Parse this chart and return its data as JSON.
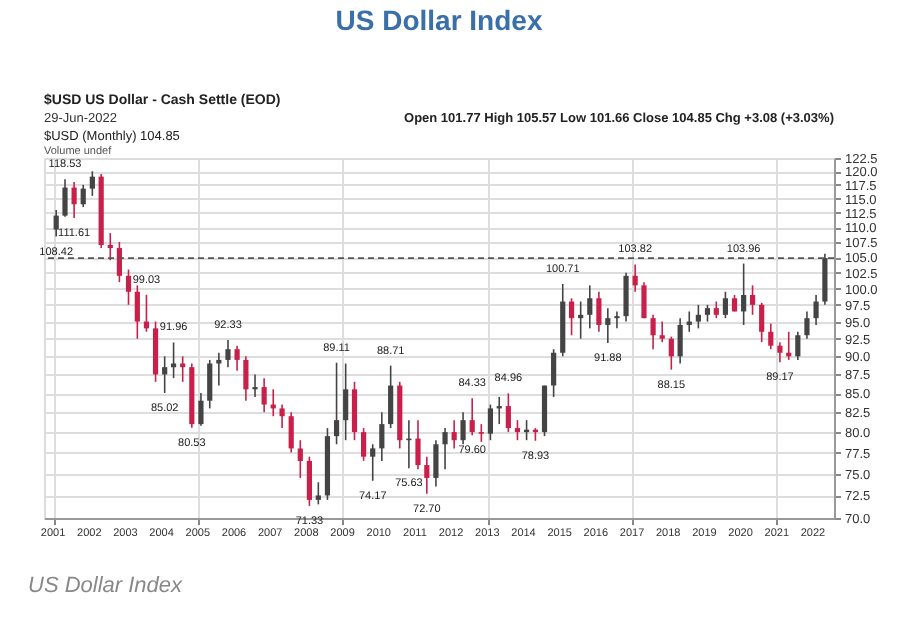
{
  "chart_data": {
    "type": "candlestick",
    "title": "US Dollar Index",
    "subtitle": "$USD US Dollar - Cash Settle (EOD)",
    "annotations": [
      "29-Jun-2022",
      "Open 101.77 High 105.57 Low 101.66 Close 104.85 Chg +3.08 (+3.03%)",
      "$USD (Monthly) 104.85",
      "Volume undef",
      "US Dollar Index",
      {
        "text": "108.42",
        "x": "2001-02",
        "y": 108.42
      },
      {
        "text": "118.53",
        "x": "2001-05",
        "y": 118.53
      },
      {
        "text": "111.61",
        "x": "2001-08",
        "y": 111.61
      },
      {
        "text": "99.03",
        "x": "2003-08",
        "y": 99.03
      },
      {
        "text": "85.02",
        "x": "2004-02",
        "y": 85.02
      },
      {
        "text": "91.96",
        "x": "2004-05",
        "y": 91.96
      },
      {
        "text": "80.53",
        "x": "2004-11",
        "y": 80.53
      },
      {
        "text": "92.33",
        "x": "2005-11",
        "y": 92.33
      },
      {
        "text": "71.33",
        "x": "2008-02",
        "y": 71.33
      },
      {
        "text": "89.11",
        "x": "2008-11",
        "y": 89.11
      },
      {
        "text": "74.17",
        "x": "2009-11",
        "y": 74.17
      },
      {
        "text": "88.71",
        "x": "2010-05",
        "y": 88.71
      },
      {
        "text": "75.63",
        "x": "2010-11",
        "y": 75.63
      },
      {
        "text": "72.70",
        "x": "2011-05",
        "y": 72.7
      },
      {
        "text": "84.33",
        "x": "2012-08",
        "y": 84.33
      },
      {
        "text": "79.60",
        "x": "2012-08",
        "y": 79.6
      },
      {
        "text": "84.96",
        "x": "2013-08",
        "y": 84.96
      },
      {
        "text": "78.93",
        "x": "2014-05",
        "y": 78.93
      },
      {
        "text": "100.71",
        "x": "2015-02",
        "y": 100.71
      },
      {
        "text": "91.88",
        "x": "2016-05",
        "y": 91.88
      },
      {
        "text": "103.82",
        "x": "2017-02",
        "y": 103.82
      },
      {
        "text": "88.15",
        "x": "2018-02",
        "y": 88.15
      },
      {
        "text": "103.96",
        "x": "2020-02",
        "y": 103.96
      },
      {
        "text": "89.17",
        "x": "2021-02",
        "y": 89.17
      }
    ],
    "x": [
      "2001-02",
      "2001-05",
      "2001-08",
      "2001-11",
      "2002-02",
      "2002-05",
      "2002-08",
      "2002-11",
      "2003-02",
      "2003-05",
      "2003-08",
      "2003-11",
      "2004-02",
      "2004-05",
      "2004-08",
      "2004-11",
      "2005-02",
      "2005-05",
      "2005-08",
      "2005-11",
      "2006-02",
      "2006-05",
      "2006-08",
      "2006-11",
      "2007-02",
      "2007-05",
      "2007-08",
      "2007-11",
      "2008-02",
      "2008-05",
      "2008-08",
      "2008-11",
      "2009-02",
      "2009-05",
      "2009-08",
      "2009-11",
      "2010-02",
      "2010-05",
      "2010-08",
      "2010-11",
      "2011-02",
      "2011-05",
      "2011-08",
      "2011-11",
      "2012-02",
      "2012-05",
      "2012-08",
      "2012-11",
      "2013-02",
      "2013-05",
      "2013-08",
      "2013-11",
      "2014-02",
      "2014-05",
      "2014-08",
      "2014-11",
      "2015-02",
      "2015-05",
      "2015-08",
      "2015-11",
      "2016-02",
      "2016-05",
      "2016-08",
      "2016-11",
      "2017-02",
      "2017-05",
      "2017-08",
      "2017-11",
      "2018-02",
      "2018-05",
      "2018-08",
      "2018-11",
      "2019-02",
      "2019-05",
      "2019-08",
      "2019-11",
      "2020-02",
      "2020-05",
      "2020-08",
      "2020-11",
      "2021-02",
      "2021-05",
      "2021-08",
      "2021-11",
      "2022-02",
      "2022-05"
    ],
    "ohlc": [
      [
        109.6,
        113.0,
        108.42,
        112.0
      ],
      [
        112.0,
        118.53,
        111.8,
        117.0
      ],
      [
        117.0,
        118.0,
        111.61,
        114.0
      ],
      [
        114.0,
        117.5,
        113.5,
        116.8
      ],
      [
        116.8,
        120.0,
        115.5,
        119.0
      ],
      [
        119.0,
        119.5,
        106.5,
        107.0
      ],
      [
        107.0,
        109.0,
        104.5,
        106.5
      ],
      [
        106.5,
        107.5,
        101.0,
        102.0
      ],
      [
        102.0,
        103.0,
        97.5,
        99.5
      ],
      [
        99.5,
        100.5,
        92.5,
        95.0
      ],
      [
        95.0,
        99.03,
        93.5,
        94.0
      ],
      [
        94.0,
        95.0,
        86.5,
        87.5
      ],
      [
        87.5,
        90.0,
        85.02,
        88.5
      ],
      [
        88.5,
        91.96,
        87.0,
        89.0
      ],
      [
        89.0,
        90.0,
        86.5,
        88.5
      ],
      [
        88.5,
        89.0,
        80.53,
        81.0
      ],
      [
        81.0,
        85.0,
        80.8,
        84.0
      ],
      [
        84.0,
        89.5,
        83.0,
        89.0
      ],
      [
        89.0,
        90.5,
        86.0,
        89.5
      ],
      [
        89.5,
        92.33,
        88.5,
        91.0
      ],
      [
        91.0,
        91.5,
        88.0,
        89.5
      ],
      [
        89.5,
        90.0,
        84.0,
        85.5
      ],
      [
        85.5,
        87.5,
        84.5,
        85.8
      ],
      [
        85.8,
        87.0,
        82.5,
        83.5
      ],
      [
        83.5,
        85.5,
        82.0,
        83.0
      ],
      [
        83.0,
        83.5,
        80.5,
        82.0
      ],
      [
        82.0,
        82.5,
        77.5,
        78.0
      ],
      [
        78.0,
        79.0,
        74.5,
        76.5
      ],
      [
        76.5,
        77.0,
        71.33,
        72.0
      ],
      [
        72.0,
        74.0,
        71.5,
        72.5
      ],
      [
        72.5,
        80.5,
        72.0,
        79.5
      ],
      [
        79.5,
        89.11,
        78.5,
        81.5
      ],
      [
        81.5,
        89.0,
        79.0,
        85.5
      ],
      [
        85.5,
        86.5,
        79.0,
        80.0
      ],
      [
        80.0,
        80.5,
        76.5,
        77.0
      ],
      [
        77.0,
        78.5,
        74.17,
        78.0
      ],
      [
        78.0,
        82.5,
        76.5,
        81.0
      ],
      [
        81.0,
        88.71,
        80.5,
        86.0
      ],
      [
        86.0,
        86.5,
        78.0,
        79.0
      ],
      [
        79.0,
        81.5,
        75.63,
        79.2
      ],
      [
        79.2,
        81.5,
        75.5,
        76.0
      ],
      [
        76.0,
        77.0,
        72.7,
        74.5
      ],
      [
        74.5,
        79.0,
        73.5,
        78.5
      ],
      [
        78.5,
        80.5,
        75.5,
        80.0
      ],
      [
        80.0,
        81.5,
        78.0,
        79.0
      ],
      [
        79.0,
        82.5,
        78.5,
        81.5
      ],
      [
        81.5,
        84.33,
        79.6,
        80.0
      ],
      [
        80.0,
        81.0,
        78.8,
        79.8
      ],
      [
        79.8,
        83.5,
        79.0,
        83.0
      ],
      [
        83.0,
        84.5,
        81.0,
        83.3
      ],
      [
        83.3,
        84.96,
        80.0,
        80.5
      ],
      [
        80.5,
        81.5,
        79.0,
        80.0
      ],
      [
        80.0,
        81.5,
        79.0,
        80.3
      ],
      [
        80.3,
        80.5,
        78.93,
        80.0
      ],
      [
        80.0,
        86.0,
        79.5,
        86.0
      ],
      [
        86.0,
        91.0,
        84.5,
        90.5
      ],
      [
        90.5,
        100.71,
        90.0,
        98.0
      ],
      [
        98.0,
        98.5,
        93.0,
        95.5
      ],
      [
        95.5,
        98.0,
        92.5,
        96.0
      ],
      [
        96.0,
        100.5,
        94.0,
        98.5
      ],
      [
        98.5,
        99.5,
        93.5,
        94.5
      ],
      [
        94.5,
        97.0,
        91.88,
        95.5
      ],
      [
        95.5,
        96.5,
        94.0,
        95.8
      ],
      [
        95.8,
        102.5,
        95.0,
        102.0
      ],
      [
        102.0,
        103.82,
        99.5,
        100.5
      ],
      [
        100.5,
        101.0,
        95.5,
        95.5
      ],
      [
        95.5,
        96.0,
        91.0,
        93.0
      ],
      [
        93.0,
        95.0,
        92.0,
        92.5
      ],
      [
        92.5,
        92.8,
        88.15,
        90.0
      ],
      [
        90.0,
        95.5,
        89.0,
        94.5
      ],
      [
        94.5,
        96.5,
        93.5,
        95.0
      ],
      [
        95.0,
        97.5,
        94.0,
        96.0
      ],
      [
        96.0,
        97.5,
        95.0,
        97.0
      ],
      [
        97.0,
        98.0,
        95.5,
        96.0
      ],
      [
        96.0,
        99.5,
        95.5,
        98.5
      ],
      [
        98.5,
        99.0,
        96.5,
        96.5
      ],
      [
        96.5,
        103.96,
        94.5,
        99.0
      ],
      [
        99.0,
        100.5,
        96.0,
        97.5
      ],
      [
        97.5,
        97.8,
        92.0,
        93.5
      ],
      [
        93.5,
        94.7,
        91.0,
        91.5
      ],
      [
        91.5,
        92.0,
        89.17,
        90.5
      ],
      [
        90.5,
        93.5,
        89.5,
        90.0
      ],
      [
        90.0,
        93.5,
        89.5,
        93.0
      ],
      [
        93.0,
        96.5,
        92.5,
        95.5
      ],
      [
        95.5,
        99.0,
        94.5,
        98.0
      ],
      [
        98.0,
        105.57,
        97.5,
        104.85
      ]
    ],
    "colors": [
      "#444444",
      "#444444",
      "#c8204a",
      "#444444",
      "#444444",
      "#c8204a",
      "#c8204a",
      "#c8204a",
      "#c8204a",
      "#c8204a",
      "#c8204a",
      "#c8204a",
      "#444444",
      "#444444",
      "#c8204a",
      "#c8204a",
      "#444444",
      "#444444",
      "#444444",
      "#444444",
      "#c8204a",
      "#c8204a",
      "#444444",
      "#c8204a",
      "#c8204a",
      "#c8204a",
      "#c8204a",
      "#c8204a",
      "#c8204a",
      "#444444",
      "#444444",
      "#444444",
      "#444444",
      "#c8204a",
      "#c8204a",
      "#444444",
      "#444444",
      "#444444",
      "#c8204a",
      "#444444",
      "#c8204a",
      "#c8204a",
      "#444444",
      "#444444",
      "#c8204a",
      "#444444",
      "#c8204a",
      "#c8204a",
      "#444444",
      "#444444",
      "#c8204a",
      "#c8204a",
      "#444444",
      "#c8204a",
      "#444444",
      "#444444",
      "#444444",
      "#c8204a",
      "#444444",
      "#444444",
      "#c8204a",
      "#444444",
      "#444444",
      "#444444",
      "#c8204a",
      "#c8204a",
      "#c8204a",
      "#c8204a",
      "#c8204a",
      "#444444",
      "#444444",
      "#444444",
      "#444444",
      "#c8204a",
      "#444444",
      "#c8204a",
      "#444444",
      "#c8204a",
      "#c8204a",
      "#c8204a",
      "#c8204a",
      "#c8204a",
      "#444444",
      "#444444",
      "#444444",
      "#444444"
    ],
    "xlim": [
      "2000-10",
      "2022-08"
    ],
    "xticks": [
      "2001",
      "2002",
      "2003",
      "2004",
      "2005",
      "2006",
      "2007",
      "2008",
      "2009",
      "2010",
      "2011",
      "2012",
      "2013",
      "2014",
      "2015",
      "2016",
      "2017",
      "2018",
      "2019",
      "2020",
      "2021",
      "2022"
    ],
    "ylim": [
      70.0,
      122.5
    ],
    "yticks": [
      {
        "value": 70,
        "label": "70.0"
      },
      {
        "value": 72.5,
        "label": "72.5"
      },
      {
        "value": 75,
        "label": "75.0"
      },
      {
        "value": 77.5,
        "label": "77.5"
      },
      {
        "value": 80,
        "label": "80.0"
      },
      {
        "value": 82.5,
        "label": "82.5"
      },
      {
        "value": 85,
        "label": "85.0"
      },
      {
        "value": 87.5,
        "label": "87.5"
      },
      {
        "value": 90,
        "label": "90.0"
      },
      {
        "value": 92.5,
        "label": "92.5"
      },
      {
        "value": 95,
        "label": "95.0"
      },
      {
        "value": 97.5,
        "label": "97.5"
      },
      {
        "value": 100,
        "label": "100.0"
      },
      {
        "value": 102.5,
        "label": "102.5"
      },
      {
        "value": 105,
        "label": "105.0"
      },
      {
        "value": 107.5,
        "label": "107.5"
      },
      {
        "value": 110,
        "label": "110.0"
      },
      {
        "value": 112.5,
        "label": "112.5"
      },
      {
        "value": 115,
        "label": "115.0"
      },
      {
        "value": 117.5,
        "label": "117.5"
      },
      {
        "value": 120,
        "label": "120.0"
      },
      {
        "value": 122.5,
        "label": "122.5"
      }
    ],
    "log": true,
    "grid": true,
    "ref_lines": [
      {
        "axis": "y",
        "value": 104.85,
        "line_style": "dashed",
        "color": "#555555"
      }
    ]
  }
}
